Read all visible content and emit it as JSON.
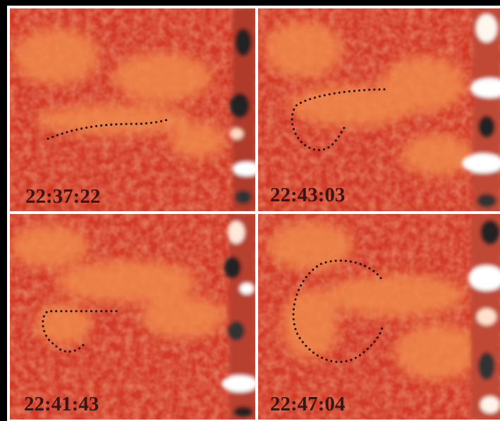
{
  "panels": [
    {
      "label": "22:37:22"
    },
    {
      "label": "22:43:03"
    },
    {
      "label": "22:41:43"
    },
    {
      "label": "22:47:04"
    }
  ]
}
